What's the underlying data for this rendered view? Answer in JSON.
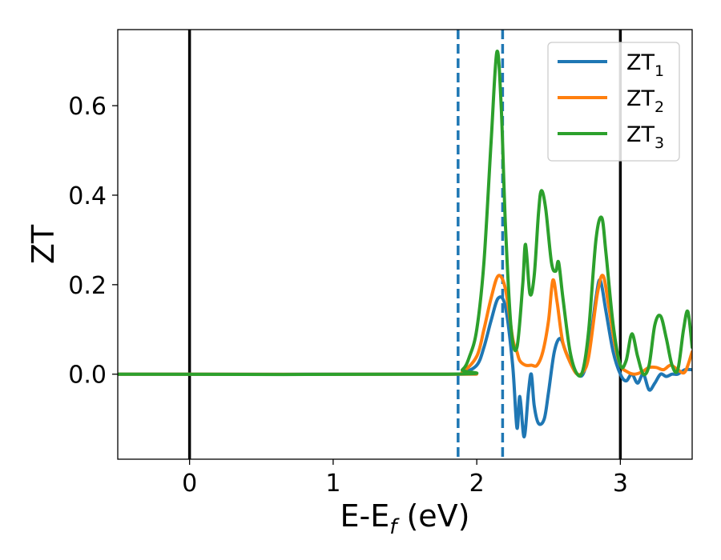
{
  "chart_data": {
    "type": "line",
    "title": "",
    "xlabel_main": "E-E",
    "xlabel_sub": "f",
    "xlabel_unit": " (eV)",
    "ylabel": "ZT",
    "xlim": [
      -0.5,
      3.5
    ],
    "ylim": [
      -0.19,
      0.77
    ],
    "xticks": [
      0,
      1,
      2,
      3
    ],
    "yticks": [
      0.0,
      0.2,
      0.4,
      0.6
    ],
    "xtick_labels": [
      "0",
      "1",
      "2",
      "3"
    ],
    "ytick_labels": [
      "0.0",
      "0.2",
      "0.4",
      "0.6"
    ],
    "grid": false,
    "legend_position": "top-right",
    "vertical_lines": [
      {
        "x": 0.0,
        "style": "solid",
        "color": "#000000"
      },
      {
        "x": 3.0,
        "style": "solid",
        "color": "#000000"
      },
      {
        "x": 1.87,
        "style": "dashed",
        "color": "#1f77b4"
      },
      {
        "x": 2.18,
        "style": "dashed",
        "color": "#1f77b4"
      }
    ],
    "series": [
      {
        "name": "ZT",
        "sub": "1",
        "color": "#1f77b4",
        "x": [
          -0.5,
          1.8,
          1.9,
          2.0,
          2.05,
          2.1,
          2.15,
          2.2,
          2.25,
          2.28,
          2.3,
          2.33,
          2.36,
          2.38,
          2.4,
          2.43,
          2.47,
          2.5,
          2.54,
          2.58,
          2.62,
          2.66,
          2.7,
          2.74,
          2.78,
          2.83,
          2.86,
          2.9,
          2.95,
          3.0,
          3.04,
          3.08,
          3.12,
          3.16,
          3.2,
          3.24,
          3.28,
          3.32,
          3.36,
          3.4,
          3.45,
          3.5
        ],
        "y": [
          0.0,
          0.0,
          0.003,
          0.02,
          0.06,
          0.12,
          0.17,
          0.15,
          0.02,
          -0.12,
          -0.05,
          -0.14,
          -0.04,
          0.0,
          -0.07,
          -0.11,
          -0.1,
          -0.04,
          0.05,
          0.08,
          0.05,
          0.02,
          0.0,
          0.0,
          0.05,
          0.17,
          0.21,
          0.14,
          0.05,
          0.0,
          -0.015,
          0.0,
          -0.02,
          0.0,
          -0.035,
          -0.02,
          0.0,
          -0.005,
          0.0,
          0.0,
          0.01,
          0.01
        ]
      },
      {
        "name": "ZT",
        "sub": "2",
        "color": "#ff7f0e",
        "x": [
          -0.5,
          1.8,
          1.9,
          2.0,
          2.05,
          2.1,
          2.15,
          2.2,
          2.25,
          2.28,
          2.3,
          2.34,
          2.38,
          2.42,
          2.46,
          2.5,
          2.53,
          2.56,
          2.6,
          2.66,
          2.7,
          2.74,
          2.78,
          2.84,
          2.88,
          2.92,
          2.96,
          3.0,
          3.05,
          3.1,
          3.15,
          3.2,
          3.25,
          3.3,
          3.35,
          3.4,
          3.45,
          3.5
        ],
        "y": [
          0.0,
          0.0,
          0.005,
          0.04,
          0.1,
          0.17,
          0.22,
          0.19,
          0.08,
          0.05,
          0.03,
          0.02,
          0.02,
          0.02,
          0.05,
          0.12,
          0.21,
          0.16,
          0.07,
          0.02,
          0.0,
          0.005,
          0.04,
          0.18,
          0.22,
          0.15,
          0.07,
          0.02,
          0.005,
          0.0,
          0.005,
          0.015,
          0.015,
          0.01,
          0.02,
          0.01,
          0.005,
          0.05
        ]
      },
      {
        "name": "ZT",
        "sub": "3",
        "color": "#2ca02c",
        "x": [
          -0.5,
          1.8,
          1.9,
          1.95,
          2.0,
          2.05,
          2.1,
          2.14,
          2.17,
          2.2,
          2.24,
          2.28,
          2.32,
          2.34,
          2.37,
          2.4,
          2.43,
          2.45,
          2.48,
          2.52,
          2.55,
          2.57,
          2.6,
          2.65,
          2.7,
          2.74,
          2.78,
          2.83,
          2.87,
          2.9,
          2.95,
          3.0,
          3.04,
          3.08,
          3.12,
          3.16,
          3.2,
          3.24,
          3.28,
          3.32,
          3.36,
          3.4,
          3.44,
          3.47,
          3.5
        ],
        "y": [
          0.0,
          0.0,
          0.01,
          0.04,
          0.1,
          0.25,
          0.52,
          0.72,
          0.6,
          0.33,
          0.1,
          0.06,
          0.2,
          0.29,
          0.18,
          0.22,
          0.36,
          0.41,
          0.37,
          0.25,
          0.23,
          0.25,
          0.17,
          0.05,
          0.0,
          0.01,
          0.1,
          0.3,
          0.35,
          0.27,
          0.11,
          0.02,
          0.03,
          0.09,
          0.04,
          0.0,
          0.02,
          0.11,
          0.13,
          0.08,
          0.02,
          0.01,
          0.1,
          0.14,
          0.06
        ]
      }
    ]
  }
}
